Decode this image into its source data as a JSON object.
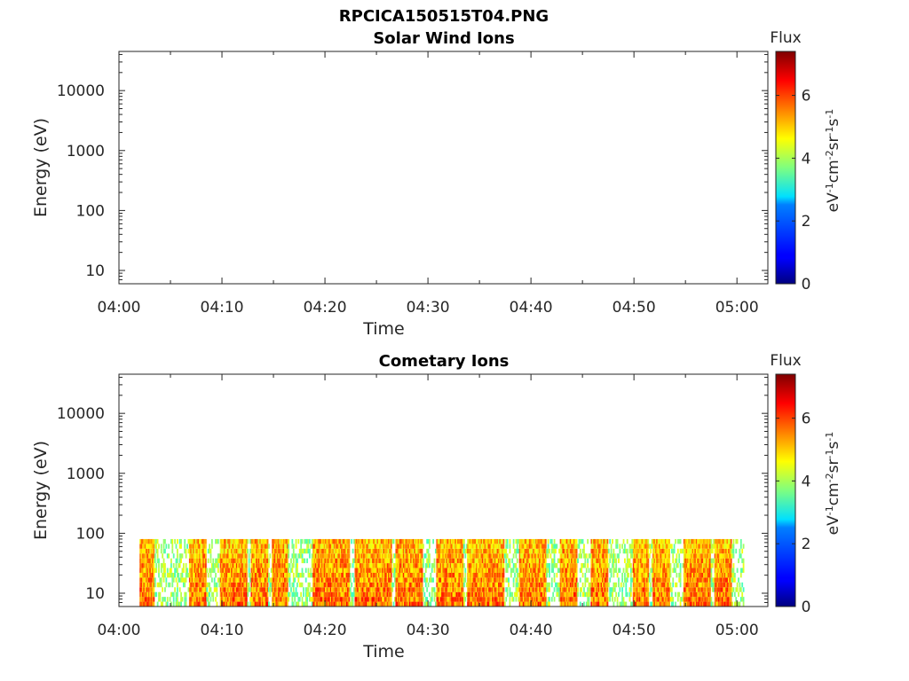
{
  "figure_title": "RPCICA150515T04.PNG",
  "chart_data": [
    {
      "type": "heatmap",
      "title": "Solar Wind Ions",
      "xlabel": "Time",
      "ylabel": "Energy (eV)",
      "x_ticks": [
        "04:00",
        "04:10",
        "04:20",
        "04:30",
        "04:40",
        "04:50",
        "05:00"
      ],
      "xlim": [
        "04:00",
        "05:03"
      ],
      "y_scale": "log",
      "y_ticks": [
        {
          "value": 10,
          "label": "10"
        },
        {
          "value": 100,
          "label": "100"
        },
        {
          "value": 1000,
          "label": "1000"
        },
        {
          "value": 10000,
          "label": "10000"
        }
      ],
      "ylim": [
        6,
        45000
      ],
      "colorbar": {
        "title": "Flux",
        "label": "eV-1cm-2sr-1s-1",
        "range": [
          0,
          7.4
        ],
        "ticks": [
          "0",
          "2",
          "4",
          "6"
        ],
        "colormap": "jet"
      },
      "values": []
    },
    {
      "type": "heatmap",
      "title": "Cometary Ions",
      "xlabel": "Time",
      "ylabel": "Energy (eV)",
      "x_ticks": [
        "04:00",
        "04:10",
        "04:20",
        "04:30",
        "04:40",
        "04:50",
        "05:00"
      ],
      "xlim": [
        "04:00",
        "05:03"
      ],
      "y_scale": "log",
      "y_ticks": [
        {
          "value": 10,
          "label": "10"
        },
        {
          "value": 100,
          "label": "100"
        },
        {
          "value": 1000,
          "label": "1000"
        },
        {
          "value": 10000,
          "label": "10000"
        }
      ],
      "ylim": [
        6,
        45000
      ],
      "colorbar": {
        "title": "Flux",
        "label": "eV-1cm-2sr-1s-1",
        "range": [
          0,
          7.4
        ],
        "ticks": [
          "0",
          "2",
          "4",
          "6"
        ],
        "colormap": "jet"
      },
      "data_time_range": [
        "04:02",
        "05:00"
      ],
      "data_energy_range": [
        6,
        80
      ],
      "flux_typical": [
        3,
        6.5
      ],
      "high_flux_intervals": [
        [
          "04:02",
          "04:03"
        ],
        [
          "04:07",
          "04:08"
        ],
        [
          "04:10",
          "04:12"
        ],
        [
          "04:13",
          "04:14"
        ],
        [
          "04:15",
          "04:16"
        ],
        [
          "04:19",
          "04:20"
        ],
        [
          "04:20",
          "04:22"
        ],
        [
          "04:23",
          "04:26"
        ],
        [
          "04:27",
          "04:29"
        ],
        [
          "04:31",
          "04:33"
        ],
        [
          "04:34",
          "04:37"
        ],
        [
          "04:39",
          "04:41"
        ],
        [
          "04:43",
          "04:44"
        ],
        [
          "04:46",
          "04:47"
        ],
        [
          "04:50",
          "04:51"
        ],
        [
          "04:52",
          "04:53"
        ],
        [
          "04:55",
          "04:57"
        ],
        [
          "04:58",
          "04:59"
        ]
      ]
    }
  ]
}
